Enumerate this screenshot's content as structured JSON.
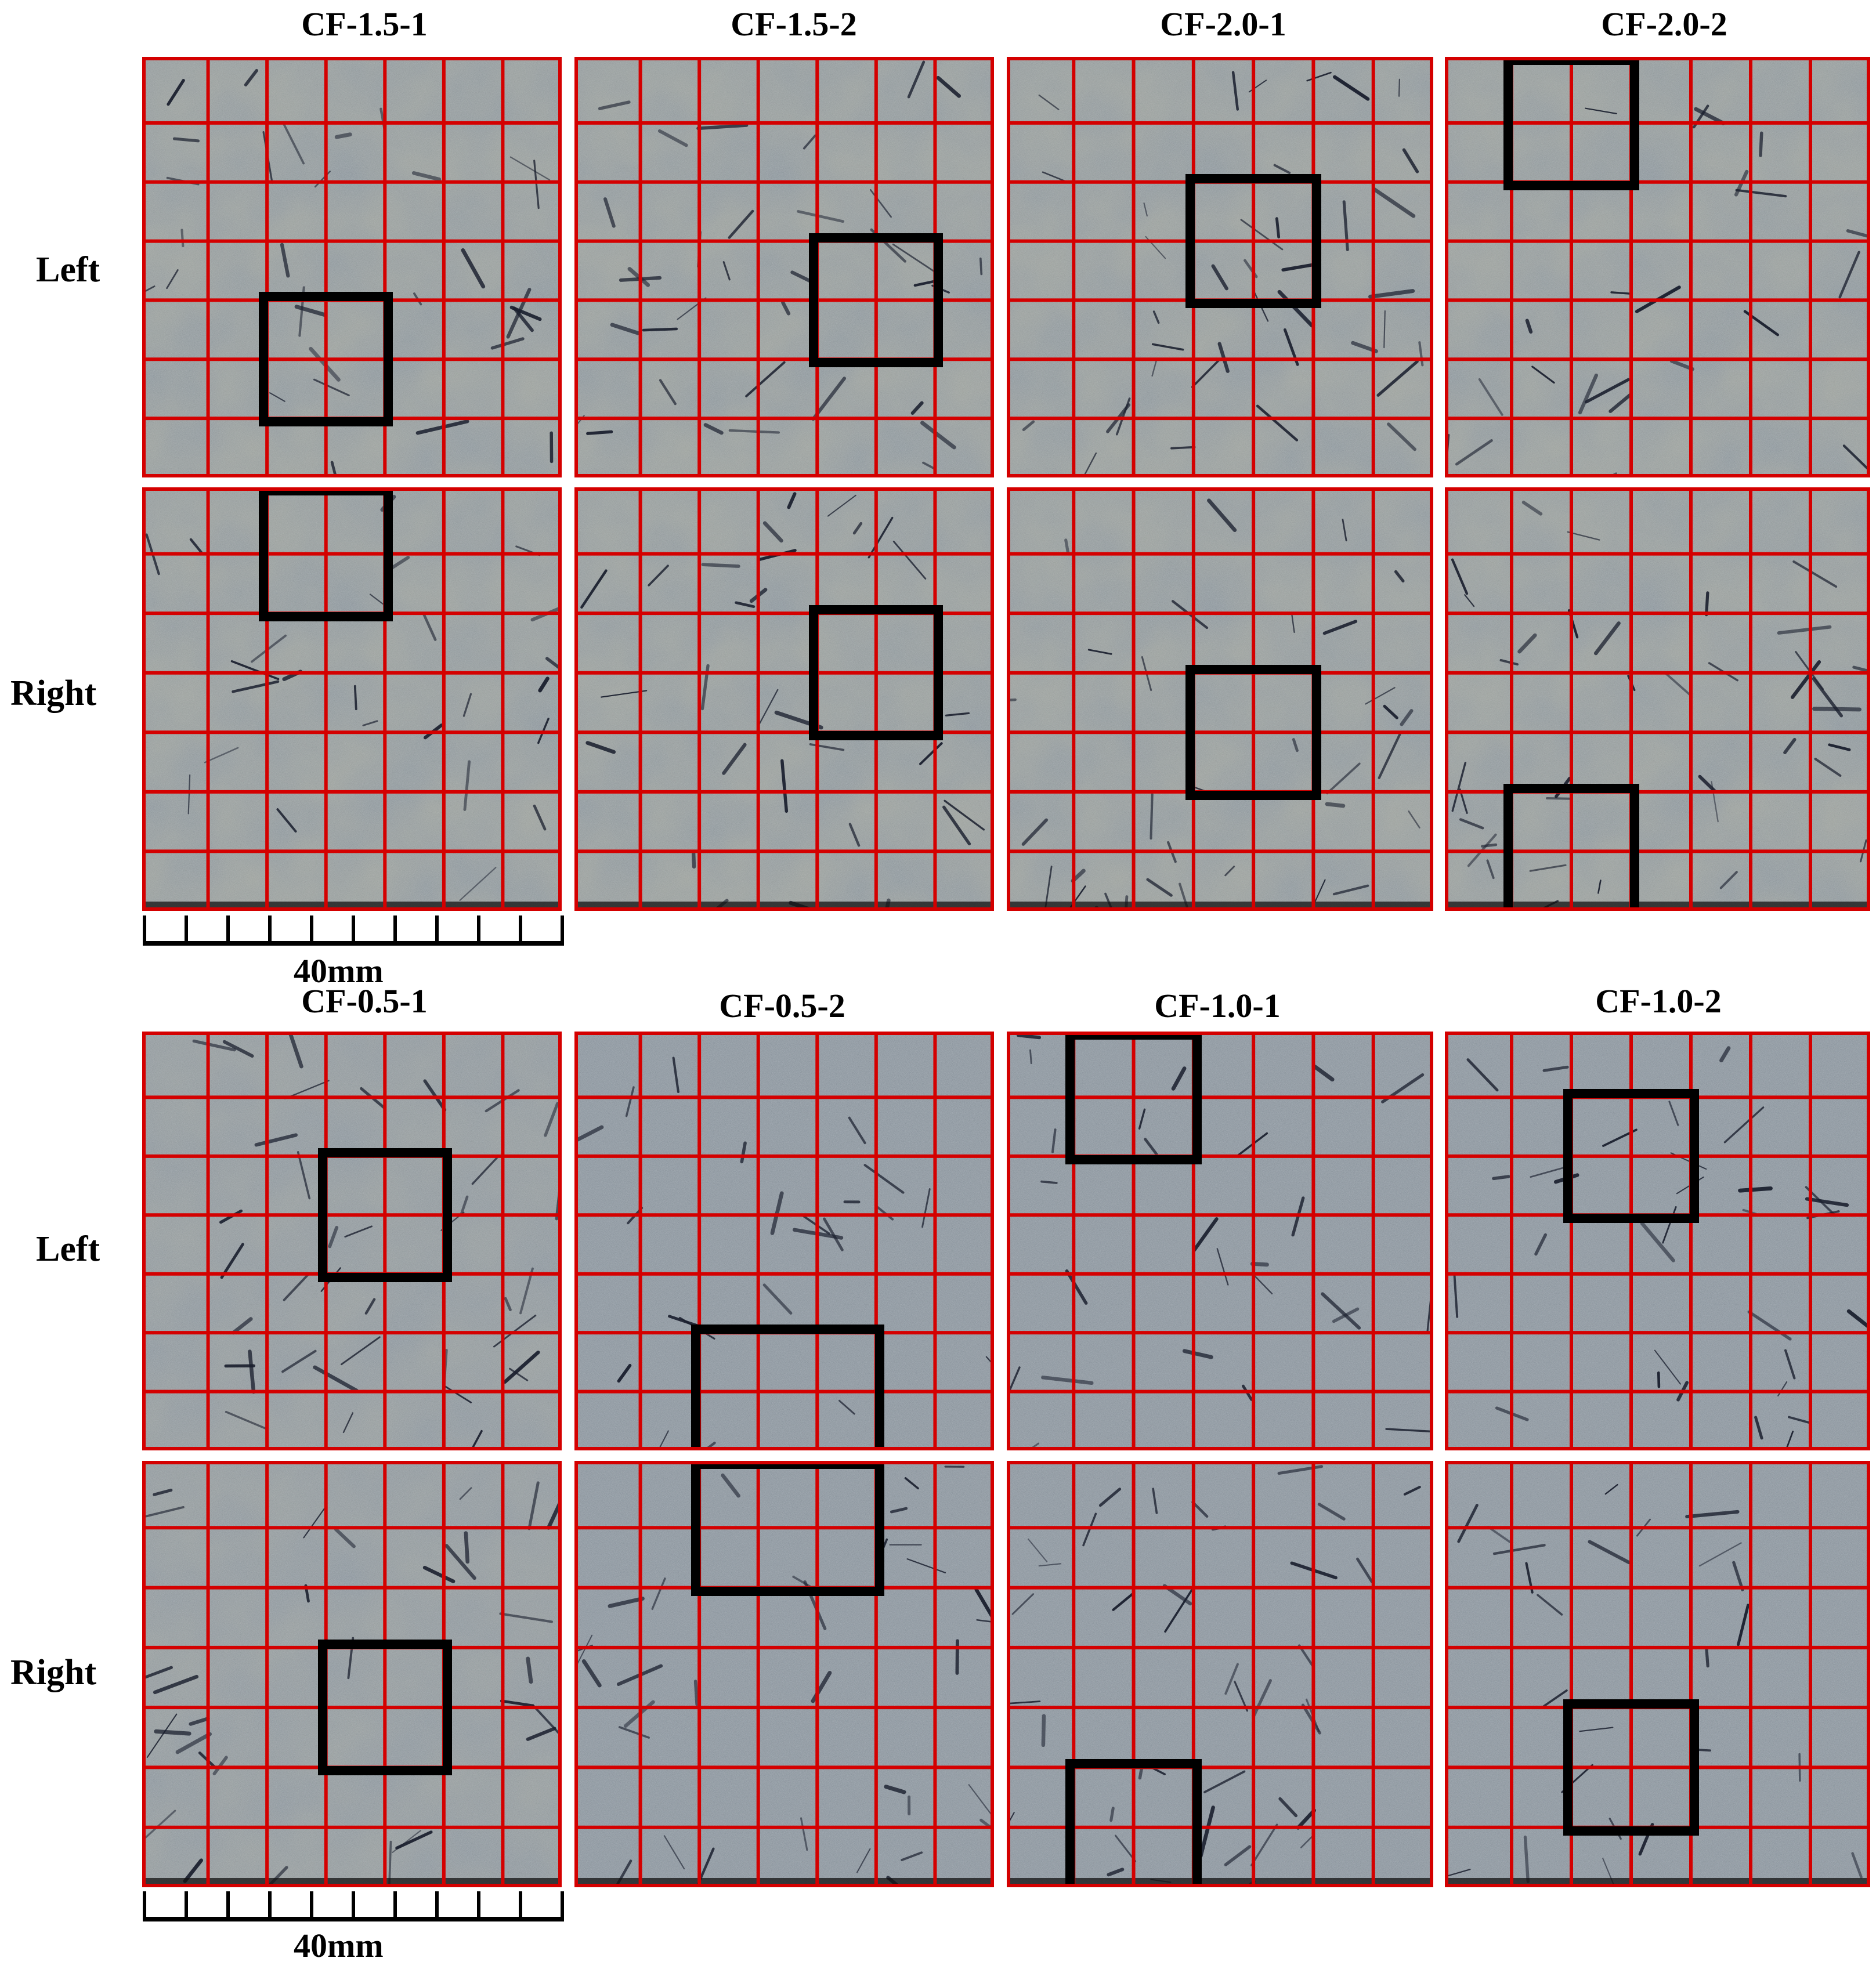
{
  "figure": {
    "colors": {
      "grid_line": "#d40000",
      "selection_box": "#000000",
      "specimen_surface_light": "#a7b1b8",
      "specimen_surface_dark": "#7d8790",
      "fibers": "#1a1f2e",
      "text": "#000000"
    },
    "blocks": [
      {
        "columns": [
          "CF-1.5-1",
          "CF-1.5-2",
          "CF-2.0-1",
          "CF-2.0-2"
        ],
        "rows": [
          "Left",
          "Right"
        ],
        "scale_label": "40mm"
      },
      {
        "columns": [
          "CF-0.5-1",
          "CF-0.5-2",
          "CF-1.0-1",
          "CF-1.0-2"
        ],
        "rows": [
          "Left",
          "Right"
        ],
        "scale_label": "40mm"
      }
    ]
  }
}
